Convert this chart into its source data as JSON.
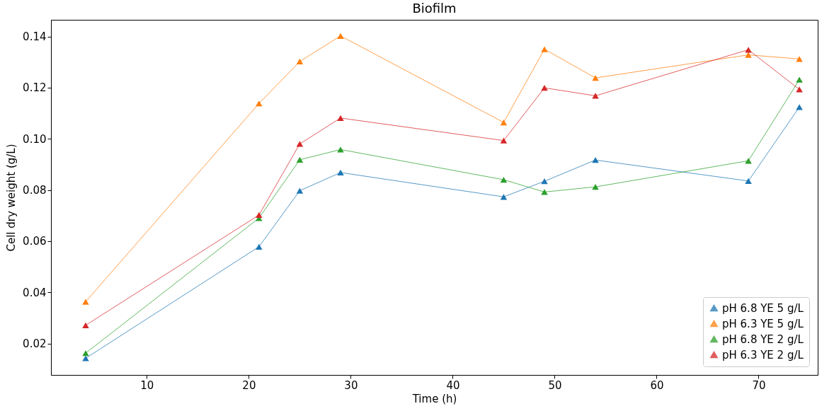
{
  "chart_data": {
    "type": "line",
    "title": "Biofilm",
    "xlabel": "Time (h)",
    "ylabel": "Cell dry weight (g/L)",
    "x": [
      4,
      21,
      25,
      29,
      45,
      49,
      54,
      69,
      74
    ],
    "series": [
      {
        "name": "pH 6.8 YE 5 g/L",
        "color": "#1f77b4",
        "values": [
          0.0142,
          0.0578,
          0.0797,
          0.0868,
          0.0773,
          0.0834,
          0.0917,
          0.0835,
          0.1124
        ]
      },
      {
        "name": "pH 6.3 YE 5 g/L",
        "color": "#ff7f0e",
        "values": [
          0.0363,
          0.1138,
          0.1302,
          0.1402,
          0.1064,
          0.135,
          0.1238,
          0.1328,
          0.1312
        ]
      },
      {
        "name": "pH 6.8 YE 2 g/L",
        "color": "#2ca02c",
        "values": [
          0.0162,
          0.069,
          0.0918,
          0.0958,
          0.084,
          0.0792,
          0.0812,
          0.0914,
          0.1231
        ]
      },
      {
        "name": "pH 6.3 YE 2 g/L",
        "color": "#d62728",
        "values": [
          0.0271,
          0.0702,
          0.098,
          0.1081,
          0.0993,
          0.1199,
          0.1168,
          0.1348,
          0.1193
        ]
      }
    ],
    "xlim": [
      0.6,
      75.8
    ],
    "xticks": [
      10,
      20,
      30,
      40,
      50,
      60,
      70
    ],
    "ylim": [
      0.0077,
      0.1465
    ],
    "yticks": [
      {
        "value": 0.02,
        "label": "0.02"
      },
      {
        "value": 0.04,
        "label": "0.04"
      },
      {
        "value": 0.06,
        "label": "0.06"
      },
      {
        "value": 0.08,
        "label": "0.08"
      },
      {
        "value": 0.1,
        "label": "0.10"
      },
      {
        "value": 0.12,
        "label": "0.12"
      },
      {
        "value": 0.14,
        "label": "0.14"
      }
    ],
    "legend": "bottom right",
    "marker": "triangle",
    "line_style": "solid",
    "grid": false
  }
}
